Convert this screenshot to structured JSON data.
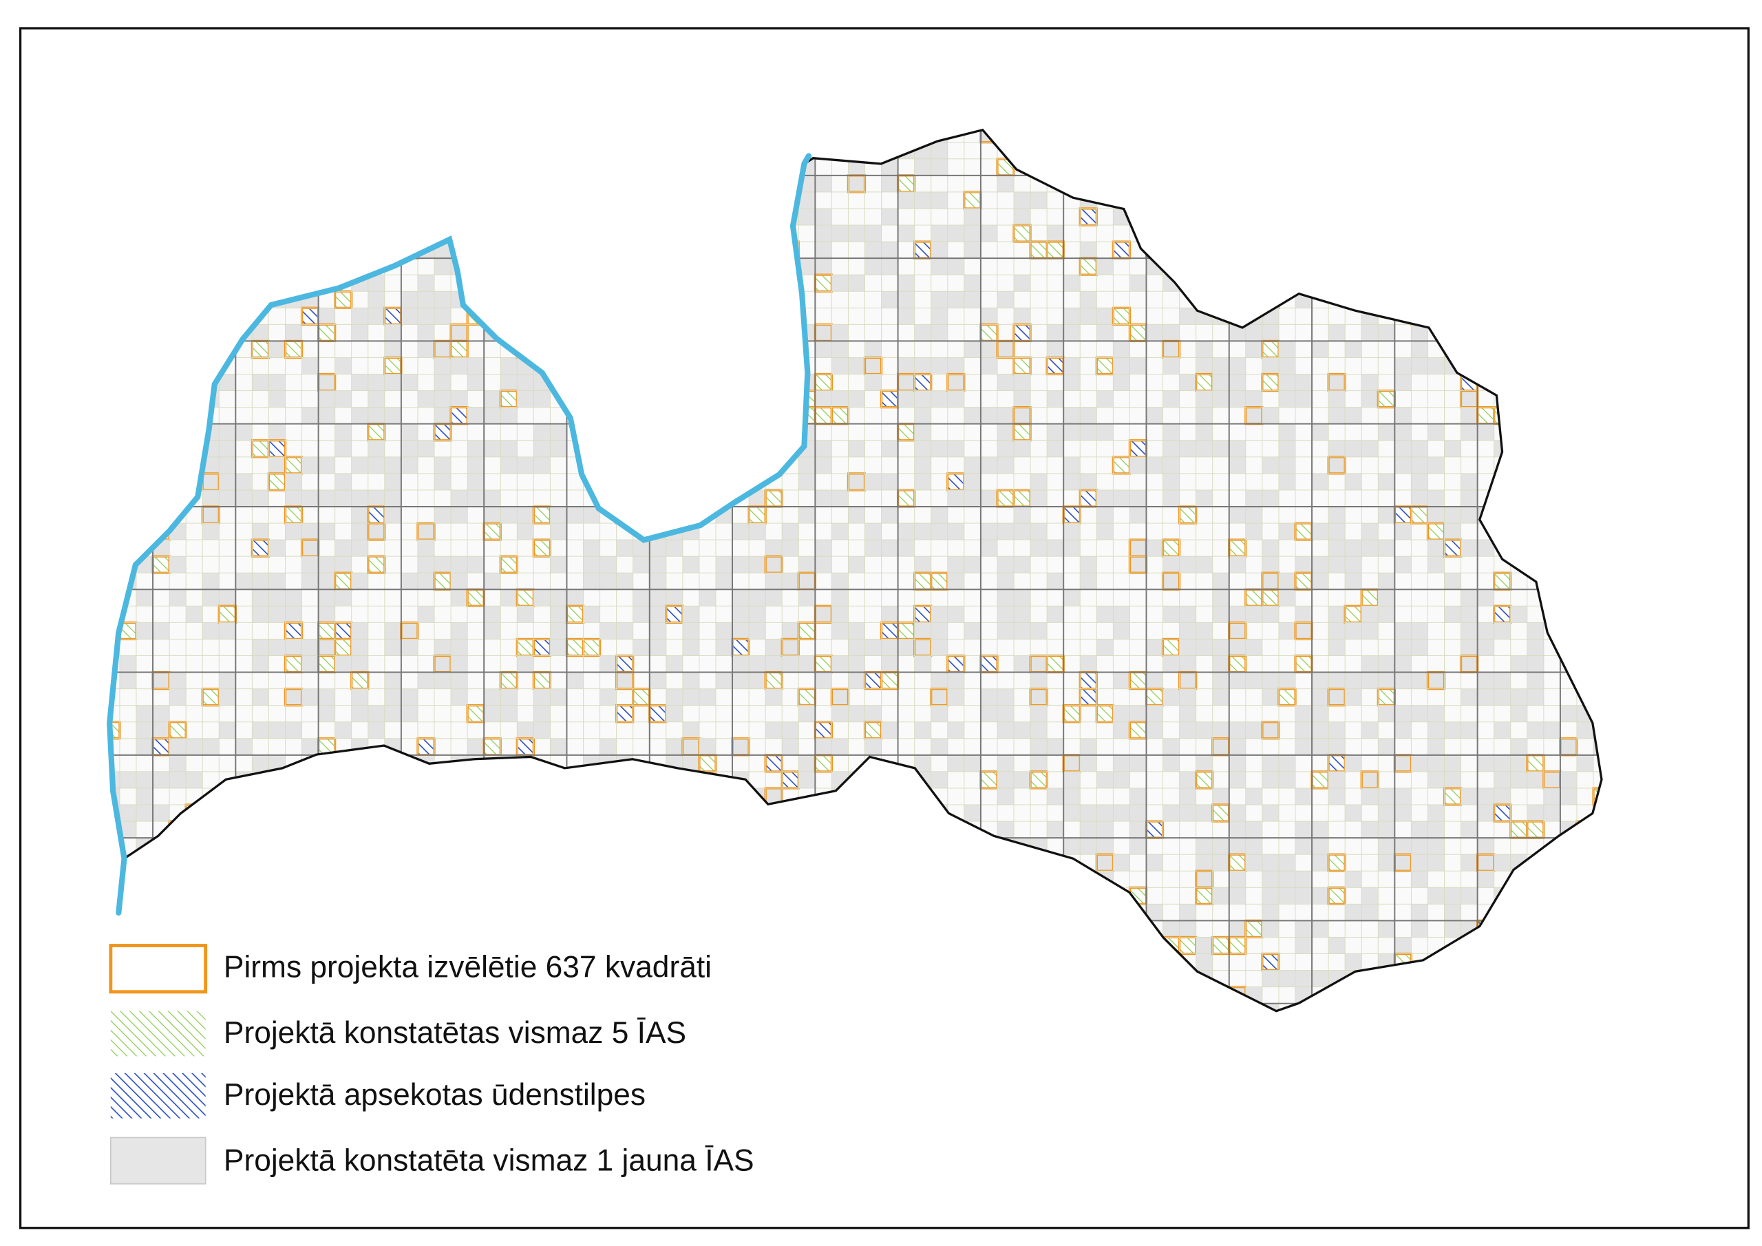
{
  "legend": [
    {
      "label": "Pirms projekta izvēlētie 637 kvadrāti"
    },
    {
      "label": "Projektā konstatētas vismaz 5 ĪAS"
    },
    {
      "label": "Projektā apsekotas ūdenstilpes"
    },
    {
      "label": "Projektā konstatēta vismaz 1 jauna ĪAS"
    }
  ]
}
